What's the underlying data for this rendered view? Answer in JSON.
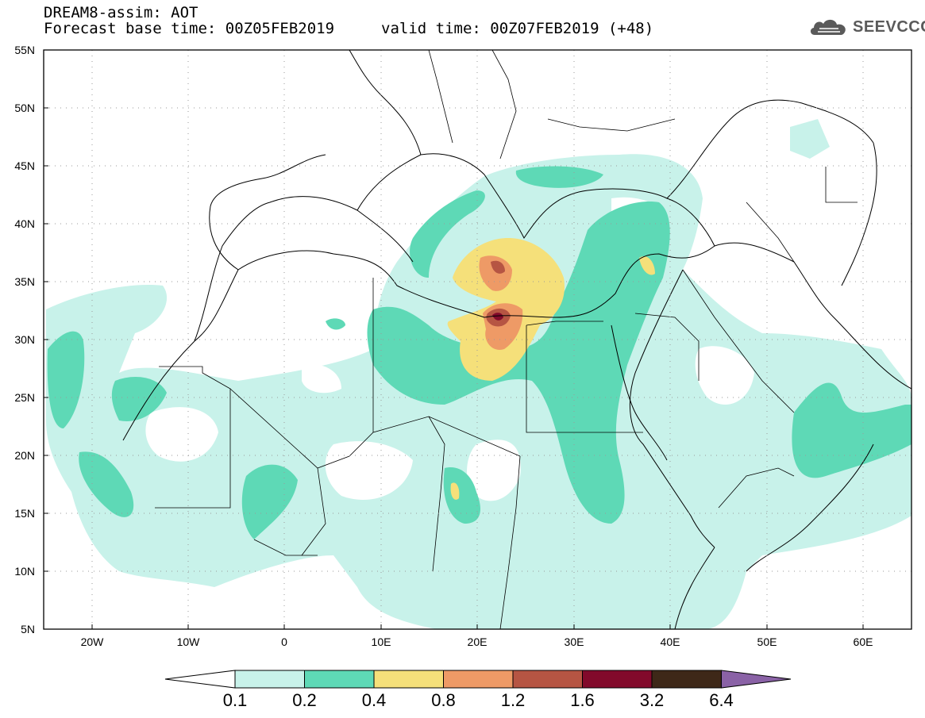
{
  "title": {
    "line1": "DREAM8-assim: AOT",
    "line2": "Forecast base time: 00Z05FEB2019",
    "valid": "valid time: 00Z07FEB2019 (+48)"
  },
  "logo": {
    "text": "SEEVCCC",
    "icon": "cloud-icon"
  },
  "map": {
    "lon_range": [
      -25,
      65
    ],
    "lat_range": [
      5,
      55
    ],
    "lat_ticks": [
      "55N",
      "50N",
      "45N",
      "40N",
      "35N",
      "30N",
      "25N",
      "20N",
      "15N",
      "10N",
      "5N"
    ],
    "lon_ticks": [
      "20W",
      "10W",
      "0",
      "10E",
      "20E",
      "30E",
      "40E",
      "50E",
      "60E"
    ],
    "gridlines": "dotted"
  },
  "colorbar": {
    "levels": [
      "0.1",
      "0.2",
      "0.4",
      "0.8",
      "1.2",
      "1.6",
      "3.2",
      "6.4"
    ],
    "colors": [
      "#ffffff",
      "#c8f2ea",
      "#5ed9b6",
      "#f5e07a",
      "#ee9a66",
      "#b65543",
      "#820a2b",
      "#3e2818",
      "#8a62a6"
    ]
  }
}
